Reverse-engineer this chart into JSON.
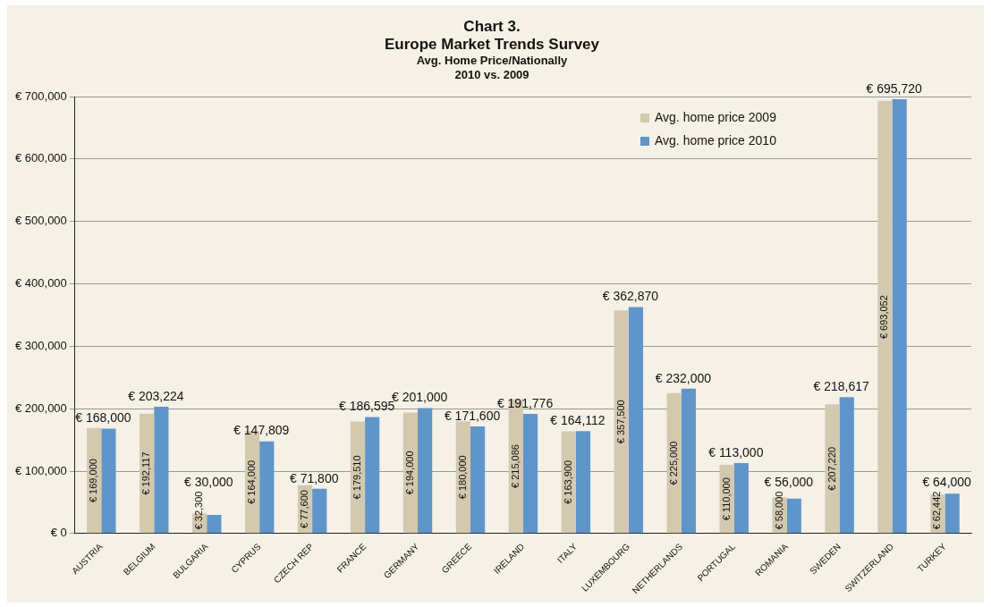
{
  "chart_data": {
    "type": "bar",
    "title": "Chart 3.\nEurope Market Trends Survey",
    "subtitle": "Avg. Home Price/Nationally\n2010 vs. 2009",
    "categories": [
      "AUSTRIA",
      "BELGIUM",
      "BULGARIA",
      "CYPRUS",
      "CZECH REP",
      "FRANCE",
      "GERMANY",
      "GREECE",
      "IRELAND",
      "ITALY",
      "LUXEMBOURG",
      "NETHERLANDS",
      "PORTUGAL",
      "ROMANIA",
      "SWEDEN",
      "SWITZERLAND",
      "TURKEY"
    ],
    "series": [
      {
        "name": "Avg. home price 2009",
        "color": "#d3c9af",
        "values": [
          169000,
          192117,
          32300,
          164000,
          77600,
          179510,
          194000,
          180000,
          215086,
          163900,
          357500,
          225000,
          110000,
          58000,
          207220,
          693052,
          62442
        ],
        "value_labels": [
          "€ 169,000",
          "€ 192,117",
          "€ 32,300",
          "€ 164,000",
          "€ 77,600",
          "€ 179,510",
          "€ 194,000",
          "€ 180,000",
          "€ 215,086",
          "€ 163,900",
          "€ 357,500",
          "€ 225,000",
          "€ 110,000",
          "€ 58,000",
          "€ 207,220",
          "€ 693,052",
          "€ 62,442"
        ]
      },
      {
        "name": "Avg. home price 2010",
        "color": "#5f95c9",
        "values": [
          168000,
          203224,
          30000,
          147809,
          71800,
          186595,
          201000,
          171600,
          191776,
          164112,
          362870,
          232000,
          113000,
          56000,
          218617,
          695720,
          64000
        ],
        "value_labels": [
          "€ 168,000",
          "€ 203,224",
          "€ 30,000",
          "€ 147,809",
          "€ 71,800",
          "€ 186,595",
          "€ 201,000",
          "€ 171,600",
          "€ 191,776",
          "€ 164,112",
          "€ 362,870",
          "€ 232,000",
          "€ 113,000",
          "€ 56,000",
          "€ 218,617",
          "€ 695,720",
          "€ 64,000"
        ]
      }
    ],
    "ylim": [
      0,
      700000
    ],
    "yticks": [
      {
        "value": 0,
        "label": "€ 0"
      },
      {
        "value": 100000,
        "label": "€ 100,000"
      },
      {
        "value": 200000,
        "label": "€ 200,000"
      },
      {
        "value": 300000,
        "label": "€ 300,000"
      },
      {
        "value": 400000,
        "label": "€ 400,000"
      },
      {
        "value": 500000,
        "label": "€ 500,000"
      },
      {
        "value": 600000,
        "label": "€ 600,000"
      },
      {
        "value": 700000,
        "label": "€ 700,000"
      }
    ],
    "grid": "y",
    "legend": "top right"
  }
}
